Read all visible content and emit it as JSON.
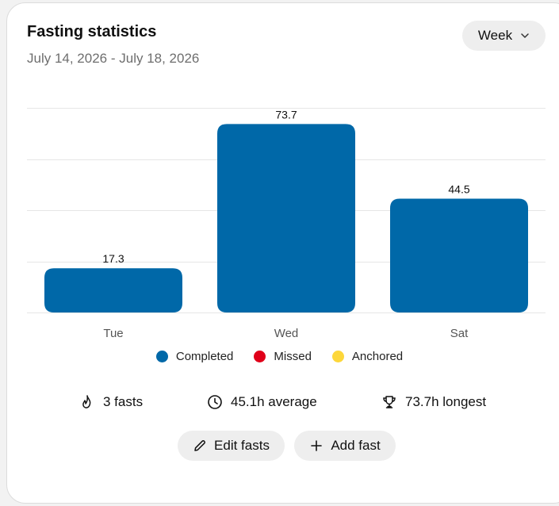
{
  "card": {
    "title": "Fasting statistics",
    "date_range": "July 14, 2026 - July 18, 2026",
    "period_select": {
      "label": "Week",
      "icon": "chevron-down-icon"
    }
  },
  "chart_data": {
    "type": "bar",
    "categories": [
      "Tue",
      "Wed",
      "Sat"
    ],
    "series": [
      {
        "name": "Completed",
        "values": [
          17.3,
          73.7,
          44.5
        ],
        "color": "#0068a8"
      }
    ],
    "data_labels": [
      "17.3",
      "73.7",
      "44.5"
    ],
    "ylim": [
      0,
      80
    ],
    "grid": true,
    "legend_position": "bottom-center"
  },
  "legend": [
    {
      "label": "Completed",
      "color": "#0068a8"
    },
    {
      "label": "Missed",
      "color": "#e00019"
    },
    {
      "label": "Anchored",
      "color": "#fdd73a"
    }
  ],
  "stats": {
    "fasts": {
      "text": "3 fasts",
      "icon": "flame-icon"
    },
    "average": {
      "text": "45.1h average",
      "icon": "clock-icon"
    },
    "longest": {
      "text": "73.7h longest",
      "icon": "trophy-icon"
    }
  },
  "actions": {
    "edit": {
      "label": "Edit fasts",
      "icon": "pencil-icon"
    },
    "add": {
      "label": "Add fast",
      "icon": "plus-icon"
    }
  }
}
